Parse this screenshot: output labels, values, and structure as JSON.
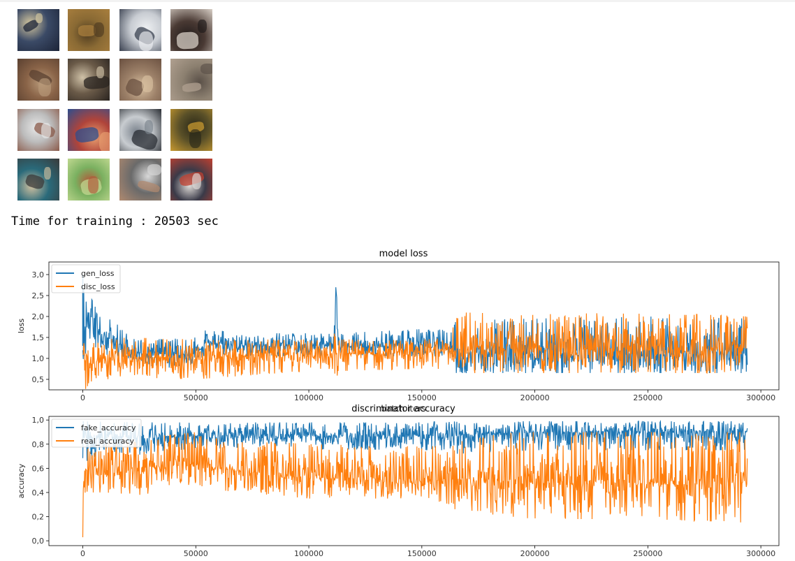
{
  "output": {
    "training_time_text": "Time for training : 20503 sec"
  },
  "samples": {
    "grid_rows": 4,
    "grid_cols": 4,
    "tiles": [
      {
        "bg": "#3b4a66",
        "a": "#1c2438",
        "b": "#d7c9a0"
      },
      {
        "bg": "#8a6a34",
        "a": "#a97f3e",
        "b": "#4e3b20"
      },
      {
        "bg": "#c8ccd2",
        "a": "#3a4150",
        "b": "#eef0f2"
      },
      {
        "bg": "#4a3a34",
        "a": "#d8cfc6",
        "b": "#1f1a1a"
      },
      {
        "bg": "#8a6448",
        "a": "#5a4030",
        "b": "#b89a7a"
      },
      {
        "bg": "#6a5a48",
        "a": "#2a2420",
        "b": "#d0c2a8"
      },
      {
        "bg": "#9c8068",
        "a": "#6a5040",
        "b": "#d8c0a0"
      },
      {
        "bg": "#8c8070",
        "a": "#b0a090",
        "b": "#5a5048"
      },
      {
        "bg": "#bcbcbc",
        "a": "#8a5a4a",
        "b": "#e8e8e8"
      },
      {
        "bg": "#b0443a",
        "a": "#2e4e8e",
        "b": "#e8a070"
      },
      {
        "bg": "#c8ccd0",
        "a": "#2a2e34",
        "b": "#7a828c"
      },
      {
        "bg": "#5a5028",
        "a": "#c89a30",
        "b": "#2a2818"
      },
      {
        "bg": "#2a6a7a",
        "a": "#3a3a3a",
        "b": "#d0c0a0"
      },
      {
        "bg": "#7ab060",
        "a": "#c0d890",
        "b": "#b05a3a"
      },
      {
        "bg": "#6a6a6a",
        "a": "#b08a70",
        "b": "#d8d8d8"
      },
      {
        "bg": "#3a3a48",
        "a": "#c04030",
        "b": "#e0dcd8"
      }
    ]
  },
  "chart_data": [
    {
      "type": "line",
      "title": "model loss",
      "xlabel": "batch iters",
      "ylabel": "loss",
      "xlim": [
        -15000,
        308000
      ],
      "ylim": [
        0.25,
        3.3
      ],
      "x_ticks": [
        0,
        50000,
        100000,
        150000,
        200000,
        250000,
        300000
      ],
      "x_tick_labels": [
        "0",
        "50000",
        "100000",
        "150000",
        "200000",
        "250000",
        "300000"
      ],
      "y_ticks": [
        0.5,
        1.0,
        1.5,
        2.0,
        2.5,
        3.0
      ],
      "y_tick_labels": [
        "0,5",
        "1,0",
        "1,5",
        "2,0",
        "2,5",
        "3,0"
      ],
      "legend_position": "top-left",
      "grid": false,
      "series": [
        {
          "name": "gen_loss",
          "color": "#1f77b4",
          "x": [
            0,
            2000,
            5000,
            10000,
            20000,
            25000,
            30000,
            50000,
            55000,
            70000,
            100000,
            111000,
            112000,
            113000,
            150000,
            163000,
            165000,
            200000,
            250000,
            294000
          ],
          "center": [
            1.3,
            2.0,
            1.75,
            1.5,
            1.25,
            1.1,
            1.1,
            1.1,
            1.4,
            1.3,
            1.3,
            1.3,
            2.8,
            1.3,
            1.3,
            1.3,
            1.15,
            1.1,
            1.1,
            1.1
          ],
          "upper": [
            3.0,
            2.6,
            2.3,
            2.0,
            1.7,
            1.5,
            1.45,
            1.5,
            1.7,
            1.6,
            1.6,
            1.6,
            3.25,
            1.6,
            1.7,
            1.7,
            1.9,
            1.95,
            2.0,
            1.95
          ],
          "lower": [
            0.6,
            1.1,
            1.2,
            1.1,
            0.9,
            0.8,
            0.8,
            0.75,
            1.1,
            1.05,
            1.05,
            1.05,
            1.3,
            1.05,
            1.05,
            1.05,
            0.65,
            0.65,
            0.65,
            0.65
          ]
        },
        {
          "name": "disc_loss",
          "color": "#ff7f0e",
          "x": [
            0,
            3000,
            10000,
            20000,
            50000,
            100000,
            111000,
            112000,
            113000,
            150000,
            163000,
            165000,
            200000,
            250000,
            294000
          ],
          "center": [
            1.0,
            0.85,
            1.0,
            1.05,
            1.0,
            1.1,
            1.1,
            1.1,
            1.1,
            1.15,
            1.15,
            1.2,
            1.25,
            1.25,
            1.25
          ],
          "upper": [
            1.45,
            1.4,
            1.45,
            1.5,
            1.45,
            1.45,
            1.45,
            1.95,
            1.45,
            1.45,
            1.5,
            2.1,
            2.05,
            2.1,
            2.0
          ],
          "lower": [
            0.25,
            0.3,
            0.5,
            0.55,
            0.5,
            0.7,
            0.7,
            0.45,
            0.7,
            0.75,
            0.75,
            0.65,
            0.65,
            0.65,
            0.65
          ]
        }
      ]
    },
    {
      "type": "line",
      "title": "discriminator accuracy",
      "xlabel": "",
      "ylabel": "accuracy",
      "xlim": [
        -15000,
        308000
      ],
      "ylim": [
        -0.04,
        1.03
      ],
      "x_ticks": [
        0,
        50000,
        100000,
        150000,
        200000,
        250000,
        300000
      ],
      "x_tick_labels": [
        "0",
        "50000",
        "100000",
        "150000",
        "200000",
        "250000",
        "300000"
      ],
      "y_ticks": [
        0.0,
        0.2,
        0.4,
        0.6,
        0.8,
        1.0
      ],
      "y_tick_labels": [
        "0,0",
        "0,2",
        "0,4",
        "0,6",
        "0,8",
        "1,0"
      ],
      "legend_position": "top-left",
      "grid": false,
      "series": [
        {
          "name": "fake_accuracy",
          "color": "#1f77b4",
          "x": [
            0,
            2000,
            10000,
            25000,
            50000,
            100000,
            150000,
            160000,
            165000,
            200000,
            250000,
            294000
          ],
          "center": [
            0.85,
            0.85,
            0.88,
            0.85,
            0.87,
            0.87,
            0.86,
            0.86,
            0.88,
            0.9,
            0.9,
            0.9
          ],
          "upper": [
            0.99,
            0.99,
            0.99,
            0.98,
            0.98,
            0.98,
            0.98,
            0.99,
            0.99,
            0.99,
            0.99,
            0.99
          ],
          "lower": [
            0.55,
            0.65,
            0.75,
            0.7,
            0.77,
            0.76,
            0.75,
            0.75,
            0.72,
            0.75,
            0.75,
            0.75
          ]
        },
        {
          "name": "real_accuracy",
          "color": "#ff7f0e",
          "x": [
            0,
            1000,
            3000,
            10000,
            25000,
            50000,
            60000,
            100000,
            150000,
            163000,
            165000,
            200000,
            250000,
            294000
          ],
          "center": [
            0.05,
            0.6,
            0.55,
            0.55,
            0.6,
            0.65,
            0.6,
            0.52,
            0.5,
            0.5,
            0.52,
            0.48,
            0.48,
            0.48
          ],
          "upper": [
            0.3,
            0.85,
            0.8,
            0.8,
            0.85,
            0.9,
            0.85,
            0.8,
            0.78,
            0.8,
            0.88,
            0.9,
            0.9,
            0.9
          ],
          "lower": [
            0.0,
            0.35,
            0.4,
            0.4,
            0.38,
            0.45,
            0.42,
            0.35,
            0.35,
            0.3,
            0.25,
            0.18,
            0.18,
            0.15
          ]
        }
      ]
    }
  ]
}
